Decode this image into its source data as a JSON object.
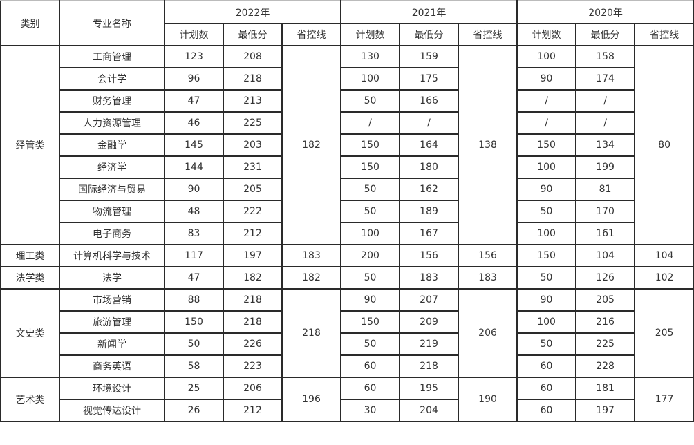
{
  "header": {
    "category": "类别",
    "major": "专业名称",
    "years": [
      "2022年",
      "2021年",
      "2020年"
    ],
    "sub": [
      "计划数",
      "最低分",
      "省控线"
    ]
  },
  "groups": [
    {
      "category": "经管类",
      "lines": [
        "182",
        "138",
        "80"
      ],
      "majors": [
        {
          "name": "工商管理",
          "values": [
            [
              "123",
              "208"
            ],
            [
              "130",
              "159"
            ],
            [
              "100",
              "158"
            ]
          ]
        },
        {
          "name": "会计学",
          "values": [
            [
              "96",
              "218"
            ],
            [
              "100",
              "175"
            ],
            [
              "90",
              "174"
            ]
          ]
        },
        {
          "name": "财务管理",
          "values": [
            [
              "47",
              "213"
            ],
            [
              "50",
              "166"
            ],
            [
              "/",
              "/"
            ]
          ]
        },
        {
          "name": "人力资源管理",
          "values": [
            [
              "46",
              "225"
            ],
            [
              "/",
              "/"
            ],
            [
              "/",
              "/"
            ]
          ]
        },
        {
          "name": "金融学",
          "values": [
            [
              "145",
              "203"
            ],
            [
              "150",
              "164"
            ],
            [
              "150",
              "134"
            ]
          ]
        },
        {
          "name": "经济学",
          "values": [
            [
              "144",
              "231"
            ],
            [
              "150",
              "180"
            ],
            [
              "100",
              "199"
            ]
          ]
        },
        {
          "name": "国际经济与贸易",
          "values": [
            [
              "90",
              "205"
            ],
            [
              "50",
              "162"
            ],
            [
              "90",
              "81"
            ]
          ]
        },
        {
          "name": "物流管理",
          "values": [
            [
              "48",
              "222"
            ],
            [
              "50",
              "189"
            ],
            [
              "50",
              "170"
            ]
          ]
        },
        {
          "name": "电子商务",
          "values": [
            [
              "83",
              "212"
            ],
            [
              "100",
              "167"
            ],
            [
              "100",
              "161"
            ]
          ]
        }
      ]
    },
    {
      "category": "理工类",
      "lines": [
        "183",
        "156",
        "104"
      ],
      "majors": [
        {
          "name": "计算机科学与技术",
          "values": [
            [
              "117",
              "197"
            ],
            [
              "200",
              "156"
            ],
            [
              "150",
              "104"
            ]
          ]
        }
      ]
    },
    {
      "category": "法学类",
      "lines": [
        "182",
        "183",
        "102"
      ],
      "majors": [
        {
          "name": "法学",
          "values": [
            [
              "47",
              "182"
            ],
            [
              "50",
              "183"
            ],
            [
              "50",
              "126"
            ]
          ]
        }
      ]
    },
    {
      "category": "文史类",
      "lines": [
        "218",
        "206",
        "205"
      ],
      "majors": [
        {
          "name": "市场营销",
          "values": [
            [
              "88",
              "218"
            ],
            [
              "90",
              "207"
            ],
            [
              "90",
              "205"
            ]
          ]
        },
        {
          "name": "旅游管理",
          "values": [
            [
              "150",
              "218"
            ],
            [
              "150",
              "209"
            ],
            [
              "100",
              "216"
            ]
          ]
        },
        {
          "name": "新闻学",
          "values": [
            [
              "50",
              "226"
            ],
            [
              "50",
              "219"
            ],
            [
              "50",
              "225"
            ]
          ]
        },
        {
          "name": "商务英语",
          "values": [
            [
              "58",
              "223"
            ],
            [
              "60",
              "218"
            ],
            [
              "60",
              "228"
            ]
          ]
        }
      ]
    },
    {
      "category": "艺术类",
      "lines": [
        "196",
        "190",
        "177"
      ],
      "majors": [
        {
          "name": "环境设计",
          "values": [
            [
              "25",
              "206"
            ],
            [
              "60",
              "195"
            ],
            [
              "60",
              "181"
            ]
          ]
        },
        {
          "name": "视觉传达设计",
          "values": [
            [
              "26",
              "212"
            ],
            [
              "30",
              "204"
            ],
            [
              "60",
              "197"
            ]
          ]
        }
      ]
    }
  ]
}
